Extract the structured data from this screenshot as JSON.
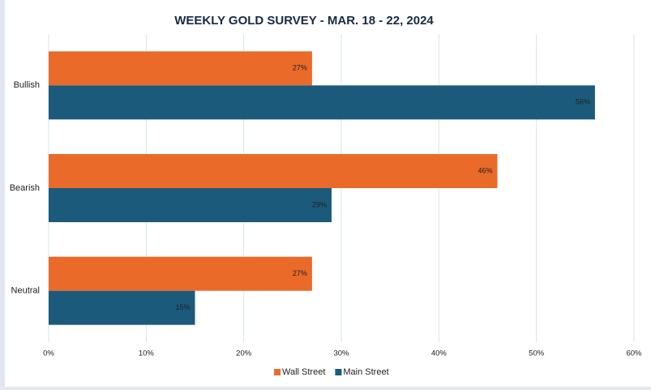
{
  "chart_data": {
    "type": "bar",
    "orientation": "horizontal",
    "title": "WEEKLY GOLD SURVEY - MAR. 18 - 22, 2024",
    "categories": [
      "Bullish",
      "Bearish",
      "Neutral"
    ],
    "series": [
      {
        "name": "Wall Street",
        "color": "#ea6a2a",
        "values": [
          27,
          46,
          27
        ],
        "value_labels": [
          "27%",
          "46%",
          "27%"
        ]
      },
      {
        "name": "Main Street",
        "color": "#1b5a7a",
        "values": [
          56,
          29,
          15
        ],
        "value_labels": [
          "56%",
          "29%",
          "15%"
        ]
      }
    ],
    "xlim": [
      0,
      60
    ],
    "xticks": [
      {
        "value": 0,
        "label": "0%"
      },
      {
        "value": 10,
        "label": "10%"
      },
      {
        "value": 20,
        "label": "20%"
      },
      {
        "value": 30,
        "label": "30%"
      },
      {
        "value": 40,
        "label": "40%"
      },
      {
        "value": 50,
        "label": "50%"
      },
      {
        "value": 60,
        "label": "60%"
      }
    ],
    "grid": true,
    "legend": "bottom"
  }
}
